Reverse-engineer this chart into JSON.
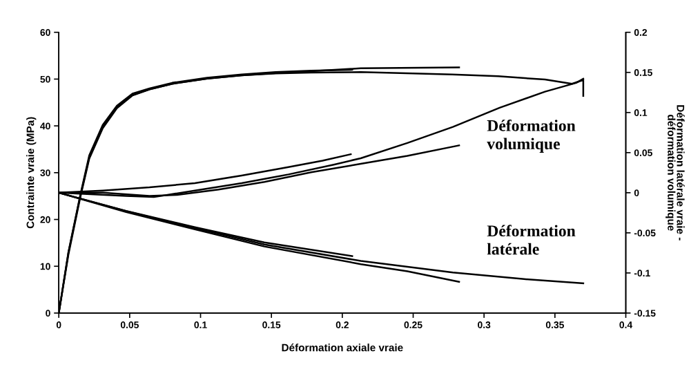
{
  "chart_data": {
    "type": "line",
    "xlabel": "Déformation axiale vraie",
    "ylabel": "Contrainte vraie (MPa)",
    "y2label": "Déformation latérale vraie -\ndéformation volumique",
    "xlim": [
      0,
      0.4
    ],
    "xticks": [
      0,
      0.05,
      0.1,
      0.15,
      0.2,
      0.25,
      0.3,
      0.35,
      0.4
    ],
    "ylim": [
      0,
      60
    ],
    "yticks": [
      0,
      10,
      20,
      30,
      40,
      50,
      60
    ],
    "y2lim": [
      -0.15,
      0.2
    ],
    "y2ticks": [
      -0.15,
      -0.1,
      -0.05,
      0,
      0.05,
      0.1,
      0.15,
      0.2
    ],
    "grid": false,
    "legend": false,
    "marker": "none",
    "line_style": "solid",
    "annotations": [
      "Déformation\nvolumique",
      "Déformation\nlatérale"
    ],
    "series": [
      {
        "color": "#000000",
        "x": [
          0,
          0.0068,
          0.015,
          0.0215,
          0.031,
          0.041,
          0.052,
          0.064,
          0.08,
          0.1046,
          0.129,
          0.153,
          0.178,
          0.207
        ],
        "values": [
          0,
          13,
          25,
          33.7,
          40.2,
          44.3,
          46.9,
          48,
          49.2,
          50.3,
          51,
          51.5,
          51.8,
          52.0
        ]
      },
      {
        "color": "#000000",
        "x": [
          0,
          0.0068,
          0.015,
          0.0215,
          0.031,
          0.041,
          0.052,
          0.064,
          0.08,
          0.1046,
          0.129,
          0.153,
          0.178,
          0.213,
          0.2824
        ],
        "values": [
          0,
          12.5,
          24.5,
          33,
          39.5,
          43.8,
          46.5,
          47.8,
          49,
          50.1,
          50.8,
          51.3,
          51.7,
          52.3,
          52.5
        ]
      },
      {
        "color": "#000000",
        "x": [
          0,
          0.0068,
          0.015,
          0.0215,
          0.031,
          0.041,
          0.052,
          0.064,
          0.08,
          0.1046,
          0.129,
          0.153,
          0.178,
          0.213,
          0.2775,
          0.31,
          0.343,
          0.362,
          0.37,
          0.37
        ],
        "values": [
          0,
          13,
          24.8,
          33.3,
          39.8,
          44,
          46.6,
          47.8,
          49,
          50.1,
          50.8,
          51.2,
          51.4,
          51.5,
          51.0,
          50.6,
          49.9,
          49.0,
          49.8,
          46.4
        ]
      },
      {
        "color": "#000000",
        "axis": "y2",
        "x": [
          0,
          0.031,
          0.064,
          0.096,
          0.129,
          0.162,
          0.186,
          0.206
        ],
        "values": [
          0,
          0.0027,
          0.0067,
          0.012,
          0.0215,
          0.032,
          0.04,
          0.048
        ]
      },
      {
        "color": "#000000",
        "axis": "y2",
        "x": [
          0,
          0.031,
          0.064,
          0.0834,
          0.1127,
          0.145,
          0.178,
          0.213,
          0.2459,
          0.2824
        ],
        "values": [
          0,
          0,
          -0.004,
          -0.0027,
          0.004,
          0.0134,
          0.0255,
          0.036,
          0.046,
          0.059
        ]
      },
      {
        "color": "#000000",
        "axis": "y2",
        "x": [
          0,
          0.0475,
          0.067,
          0.096,
          0.129,
          0.162,
          0.194,
          0.213,
          0.2459,
          0.278,
          0.311,
          0.343,
          0.365,
          0.37
        ],
        "values": [
          0,
          -0.004,
          -0.0054,
          0.0027,
          0.012,
          0.0228,
          0.035,
          0.043,
          0.062,
          0.082,
          0.106,
          0.126,
          0.137,
          0.142
        ]
      },
      {
        "color": "#000000",
        "axis": "y2",
        "x": [
          0,
          0.0475,
          0.096,
          0.145,
          0.207
        ],
        "values": [
          0,
          -0.0228,
          -0.043,
          -0.062,
          -0.079
        ]
      },
      {
        "color": "#000000",
        "axis": "y2",
        "x": [
          0,
          0.0475,
          0.096,
          0.145,
          0.213,
          0.2459,
          0.2824
        ],
        "values": [
          0,
          -0.024,
          -0.0457,
          -0.067,
          -0.089,
          -0.098,
          -0.111
        ]
      },
      {
        "color": "#000000",
        "axis": "y2",
        "x": [
          0,
          0.0475,
          0.096,
          0.145,
          0.213,
          0.278,
          0.327,
          0.37
        ],
        "values": [
          0,
          -0.023,
          -0.044,
          -0.0645,
          -0.085,
          -0.0995,
          -0.1075,
          -0.113
        ]
      }
    ]
  }
}
